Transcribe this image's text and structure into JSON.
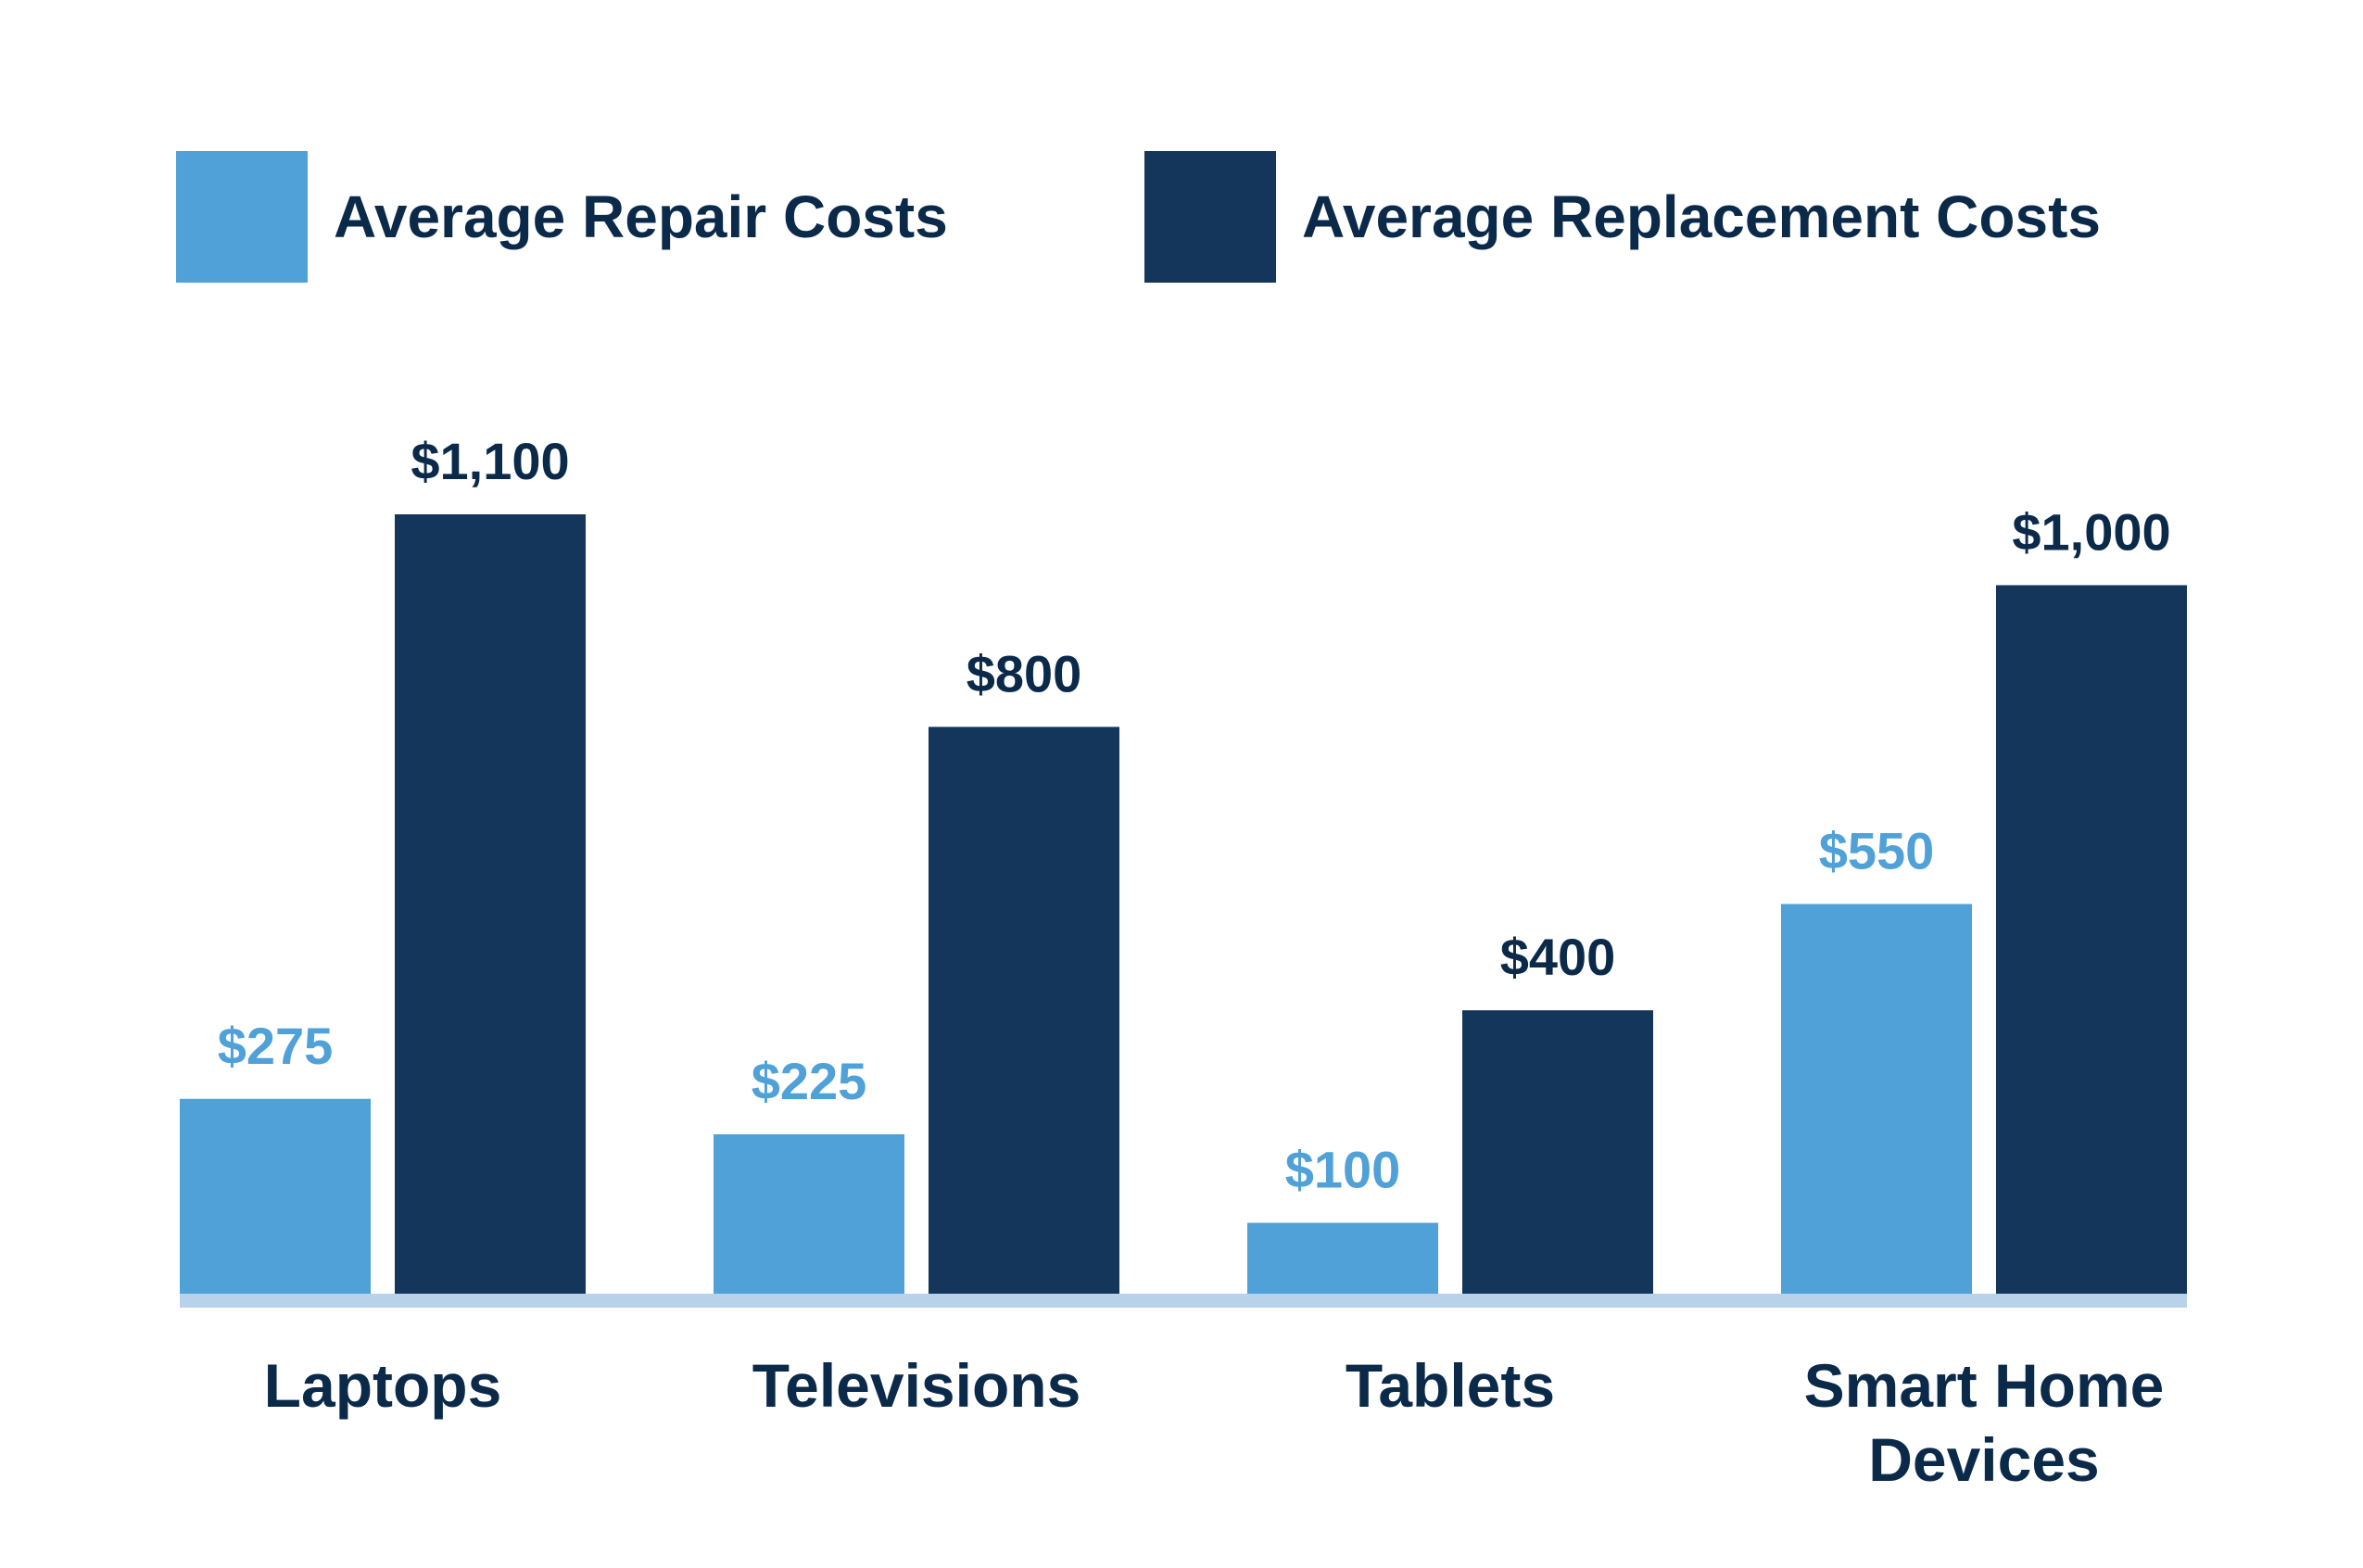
{
  "legend": {
    "repair_label": "Average Repair Costs",
    "replacement_label": "Average Replacement Costs"
  },
  "colors": {
    "repair": "#4fa1d8",
    "replacement": "#14365b",
    "baseline": "#b7d2ea",
    "text_dark": "#0b2a4a"
  },
  "chart_data": {
    "type": "bar",
    "title": "",
    "xlabel": "",
    "ylabel": "",
    "ylim": [
      0,
      1100
    ],
    "grid": false,
    "legend_position": "top",
    "categories": [
      "Laptops",
      "Televisions",
      "Tablets",
      "Smart Home Devices"
    ],
    "category_lines": [
      [
        "Laptops"
      ],
      [
        "Televisions"
      ],
      [
        "Tablets"
      ],
      [
        "Smart Home",
        "Devices"
      ]
    ],
    "series": [
      {
        "name": "Average Repair Costs",
        "values": [
          275,
          225,
          100,
          550
        ],
        "labels": [
          "$275",
          "$225",
          "$100",
          "$550"
        ]
      },
      {
        "name": "Average Replacement Costs",
        "values": [
          1100,
          800,
          400,
          1000
        ],
        "labels": [
          "$1,100",
          "$800",
          "$400",
          "$1,000"
        ]
      }
    ]
  }
}
